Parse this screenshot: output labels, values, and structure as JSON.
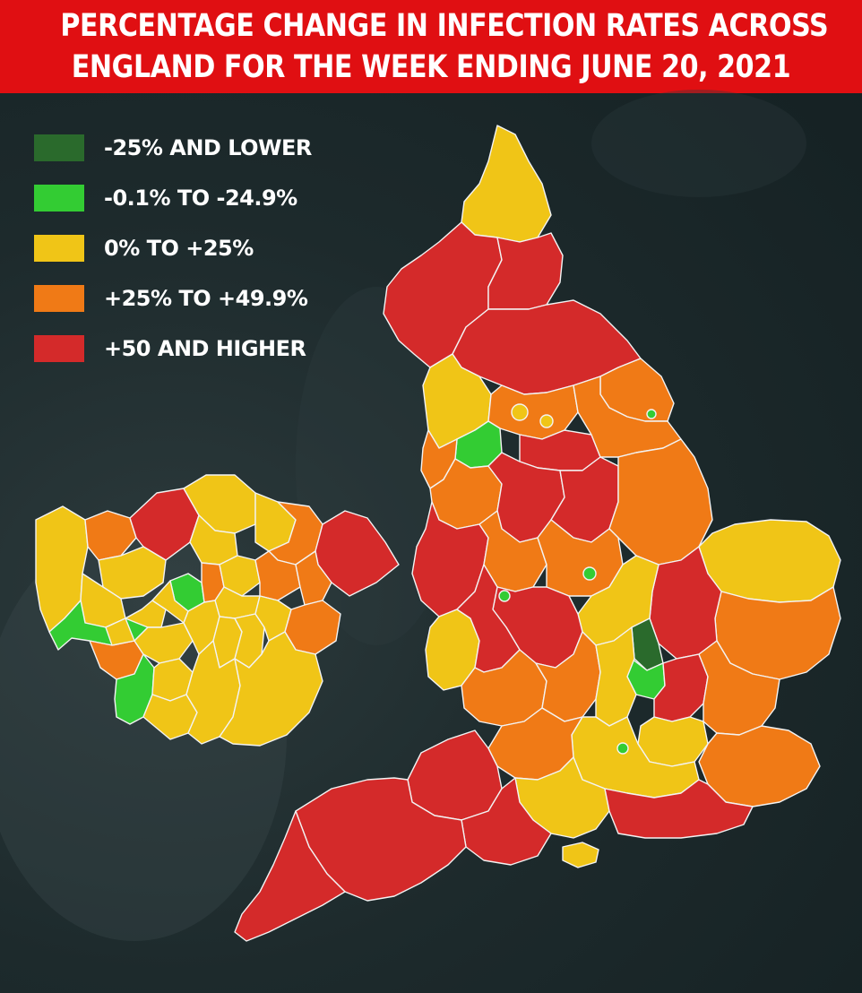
{
  "title": {
    "line1": "PERCENTAGE CHANGE IN INFECTION RATES ACROSS",
    "line2": "ENGLAND FOR THE WEEK ENDING JUNE 20, 2021"
  },
  "legend": [
    {
      "label": "-25% AND LOWER",
      "color": "#2a6a2c"
    },
    {
      "label": "-0.1% TO -24.9%",
      "color": "#33cc33"
    },
    {
      "label": "0% TO +25%",
      "color": "#f0c517"
    },
    {
      "label": "+25% TO +49.9%",
      "color": "#f07a16"
    },
    {
      "label": "+50 AND HIGHER",
      "color": "#d42a2a"
    }
  ],
  "maps": [
    "england",
    "london-inset"
  ]
}
